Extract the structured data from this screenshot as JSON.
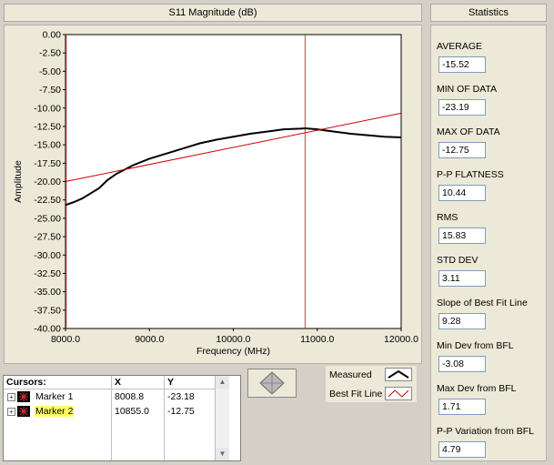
{
  "chart_title": "S11 Magnitude (dB)",
  "stats_title": "Statistics",
  "chart_data": {
    "type": "line",
    "xlabel": "Frequency (MHz)",
    "ylabel": "Amplitude",
    "xlim": [
      8000,
      12000
    ],
    "ylim": [
      -40,
      0
    ],
    "x_ticks": [
      "8000.0",
      "9000.0",
      "10000.0",
      "11000.0",
      "12000.0"
    ],
    "y_ticks": [
      "0.00",
      "-2.50",
      "-5.00",
      "-7.50",
      "-10.00",
      "-12.50",
      "-15.00",
      "-17.50",
      "-20.00",
      "-22.50",
      "-25.00",
      "-27.50",
      "-30.00",
      "-32.50",
      "-35.00",
      "-37.50",
      "-40.00"
    ],
    "grid": false,
    "series": [
      {
        "name": "Measured",
        "color": "#000000",
        "x": [
          8000,
          8100,
          8200,
          8300,
          8400,
          8500,
          8600,
          8700,
          8800,
          9000,
          9200,
          9400,
          9600,
          9800,
          10000,
          10200,
          10400,
          10600,
          10800,
          10855,
          11000,
          11200,
          11400,
          11600,
          11800,
          12000
        ],
        "y": [
          -23.2,
          -22.8,
          -22.3,
          -21.6,
          -20.9,
          -19.8,
          -19.0,
          -18.4,
          -17.8,
          -16.9,
          -16.2,
          -15.5,
          -14.8,
          -14.3,
          -13.9,
          -13.5,
          -13.2,
          -12.9,
          -12.8,
          -12.75,
          -12.9,
          -13.2,
          -13.5,
          -13.7,
          -13.9,
          -14.0
        ]
      },
      {
        "name": "Best Fit Line",
        "color": "#cc0000",
        "x": [
          8000,
          12000
        ],
        "y": [
          -20.0,
          -10.7
        ]
      }
    ],
    "cursors": [
      {
        "name": "Marker 1",
        "x": 8008.8,
        "y": -23.18
      },
      {
        "name": "Marker 2",
        "x": 10855.0,
        "y": -12.75
      }
    ]
  },
  "cursors_table": {
    "header": {
      "name": "Cursors:",
      "x": "X",
      "y": "Y"
    },
    "rows": [
      {
        "label": "Marker 1",
        "x": "8008.8",
        "y": "-23.18",
        "highlight": false
      },
      {
        "label": "Marker 2",
        "x": "10855.0",
        "y": "-12.75",
        "highlight": true
      }
    ]
  },
  "legend": {
    "measured": "Measured",
    "bfl": "Best Fit Line"
  },
  "stats": [
    {
      "label": "AVERAGE",
      "value": "-15.52"
    },
    {
      "label": "MIN OF DATA",
      "value": "-23.19"
    },
    {
      "label": "MAX OF DATA",
      "value": "-12.75"
    },
    {
      "label": "P-P FLATNESS",
      "value": "10.44"
    },
    {
      "label": "RMS",
      "value": "15.83"
    },
    {
      "label": "STD DEV",
      "value": "3.11"
    },
    {
      "label": "Slope of Best Fit Line",
      "value": "9.28"
    },
    {
      "label": "Min Dev from BFL",
      "value": "-3.08"
    },
    {
      "label": "Max Dev from BFL",
      "value": "1.71"
    },
    {
      "label": "P-P Variation from BFL",
      "value": "4.79"
    }
  ]
}
